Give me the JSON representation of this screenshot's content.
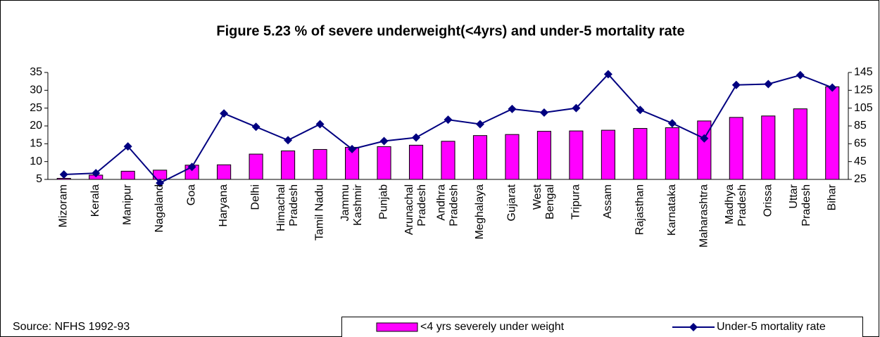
{
  "chart_data": {
    "type": "bar-line",
    "title": "Figure 5.23 % of severe underweight(<4yrs) and under-5 mortality rate",
    "source": "Source: NFHS 1992-93",
    "categories": [
      "Mizoram",
      "Kerala",
      "Manipur",
      "Nagaland",
      "Goa",
      "Haryana",
      "Delhi",
      "Himachal\nPradesh",
      "Tamil Nadu",
      "Jammu\nKashmir",
      "Punjab",
      "Arunachal\nPradesh",
      "Andhra\nPradesh",
      "Meghalaya",
      "Gujarat",
      "West\nBengal",
      "Tripura",
      "Assam",
      "Rajasthan",
      "Karnataka",
      "Maharashtra",
      "Madhya\nPradesh",
      "Orissa",
      "Uttar\nPradesh",
      "Bihar"
    ],
    "series": [
      {
        "name": "<4 yrs severely under weight",
        "type": "bar",
        "color": "#ff00ff",
        "values": [
          5.3,
          6.2,
          7.3,
          7.6,
          9.0,
          9.1,
          12.1,
          13.0,
          13.4,
          14.0,
          14.2,
          14.6,
          15.7,
          17.3,
          17.6,
          18.5,
          18.6,
          18.8,
          19.3,
          19.5,
          21.4,
          22.4,
          22.8,
          24.8,
          31.0
        ]
      },
      {
        "name": "Under-5 mortality rate",
        "type": "line",
        "axis": "y2",
        "color": "#000080",
        "values": [
          30.5,
          32,
          62,
          21,
          39,
          99,
          84,
          69,
          87,
          59,
          68,
          72,
          92,
          87,
          104,
          100,
          105,
          143,
          103,
          88,
          71,
          131,
          132,
          142,
          128
        ]
      }
    ],
    "ylim": [
      5,
      35
    ],
    "yticks": [
      5,
      10,
      15,
      20,
      25,
      30,
      35
    ],
    "y2lim": [
      25,
      145
    ],
    "y2ticks": [
      25,
      45,
      65,
      85,
      105,
      125,
      145
    ]
  }
}
